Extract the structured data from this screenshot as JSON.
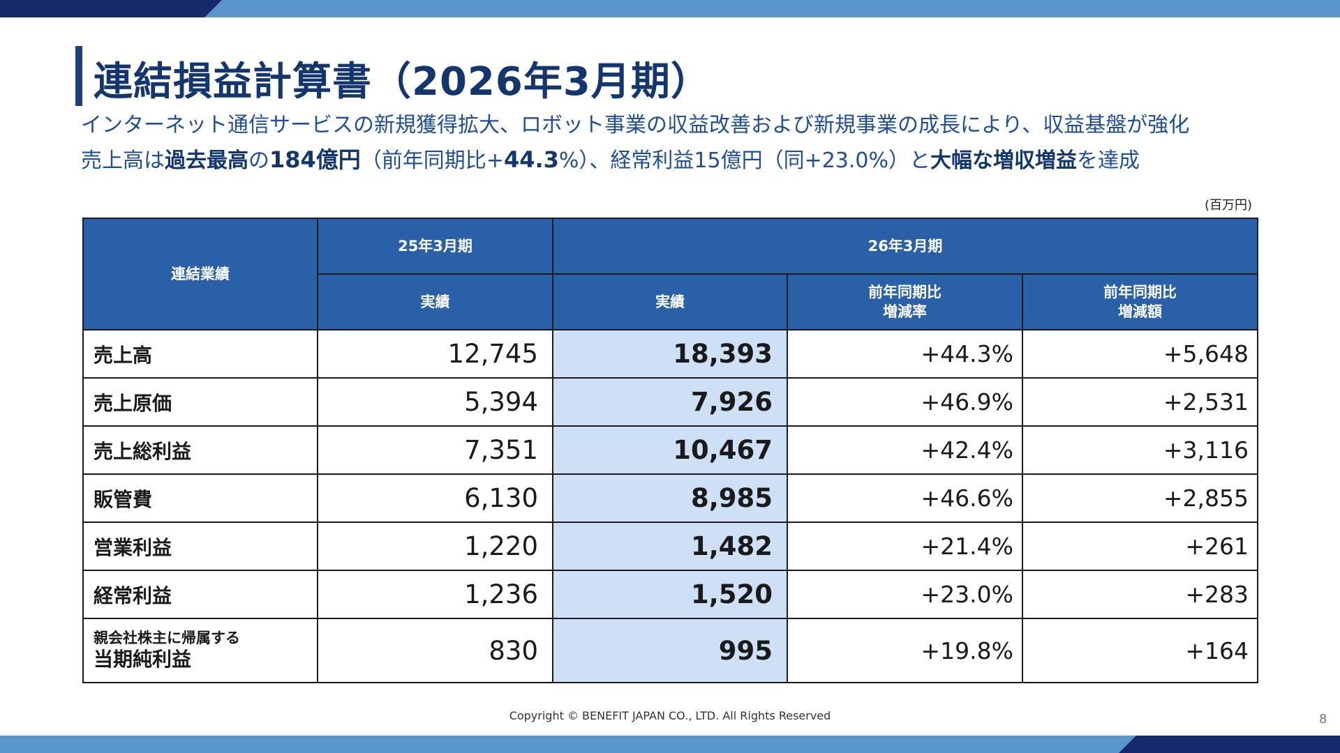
{
  "slide": {
    "title": "連結損益計算書（2026年3月期）",
    "subtitle_line1": "インターネット通信サービスの新規獲得拡大、ロボット事業の収益改善および新規事業の成長により、収益基盤が強化",
    "subtitle_line2": {
      "p1": "売上高は",
      "b1": "過去最高",
      "p2": "の",
      "b2": "184億円",
      "p3": "（前年同期比+",
      "b3": "44.3",
      "p4": "%）、経常利益15億円（同+23.0%）と",
      "b4": "大幅な増収増益",
      "p5": "を達成"
    },
    "unit": "(百万円)"
  },
  "table": {
    "header": {
      "label_col": "連結業績",
      "prev_period": "25年3月期",
      "cur_period": "26年3月期",
      "prev_actual": "実績",
      "cur_actual": "実績",
      "rate_line1": "前年同期比",
      "rate_line2": "増減率",
      "amount_line1": "前年同期比",
      "amount_line2": "増減額"
    },
    "rows": [
      {
        "label": "売上高",
        "prev": "12,745",
        "cur": "18,393",
        "rate": "+44.3%",
        "diff": "+5,648"
      },
      {
        "label": "売上原価",
        "prev": "5,394",
        "cur": "7,926",
        "rate": "+46.9%",
        "diff": "+2,531"
      },
      {
        "label": "売上総利益",
        "prev": "7,351",
        "cur": "10,467",
        "rate": "+42.4%",
        "diff": "+3,116"
      },
      {
        "label": "販管費",
        "prev": "6,130",
        "cur": "8,985",
        "rate": "+46.6%",
        "diff": "+2,855"
      },
      {
        "label": "営業利益",
        "prev": "1,220",
        "cur": "1,482",
        "rate": "+21.4%",
        "diff": "+261"
      },
      {
        "label": "経常利益",
        "prev": "1,236",
        "cur": "1,520",
        "rate": "+23.0%",
        "diff": "+283"
      },
      {
        "label_small": "親会社株主に帰属する",
        "label": "当期純利益",
        "prev": "830",
        "cur": "995",
        "rate": "+19.8%",
        "diff": "+164"
      }
    ]
  },
  "footer": {
    "copyright": "Copyright © BENEFIT JAPAN CO., LTD. All Rights Reserved",
    "page_number": "8"
  },
  "colors": {
    "title": "#14366e",
    "subtitle": "#1f4e96",
    "header_bg": "#2960a8",
    "highlight_bg": "#cde0f5",
    "band_dark": "#16296a",
    "band_light": "#5a96cd"
  }
}
